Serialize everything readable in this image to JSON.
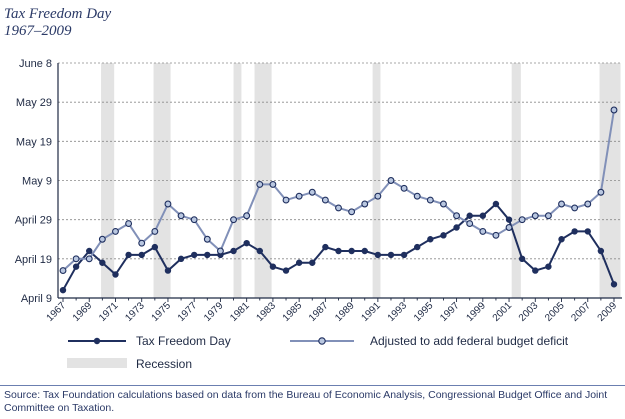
{
  "title": "Tax Freedom Day",
  "subtitle": "1967–2009",
  "source": "Source: Tax Foundation calculations based on data from the Bureau of Economic Analysis, Congressional Budget Office and Joint Committee on Taxation.",
  "colors": {
    "tfd": "#1f2f5e",
    "adjusted": "#8190b8",
    "adjusted_fill": "#b9c7e0",
    "recession": "#e3e3e3",
    "axis": "#1f2a44",
    "grid": "#8a8a8a"
  },
  "chart_data": {
    "type": "line",
    "title": "Tax Freedom Day",
    "subtitle": "1967–2009",
    "y_ticks": [
      {
        "label": "June 8",
        "value": 60
      },
      {
        "label": "May 29",
        "value": 50
      },
      {
        "label": "May 19",
        "value": 40
      },
      {
        "label": "May 9",
        "value": 30
      },
      {
        "label": "April 29",
        "value": 20
      },
      {
        "label": "April 19",
        "value": 10
      },
      {
        "label": "April 9",
        "value": 0
      }
    ],
    "y_unit": "days after April 9",
    "ylim": [
      0,
      60
    ],
    "xlim": [
      1967,
      2009
    ],
    "x_tick_labels": [
      "1967",
      "1969",
      "1971",
      "1973",
      "1975",
      "1977",
      "1979",
      "1981",
      "1983",
      "1985",
      "1987",
      "1989",
      "1991",
      "1993",
      "1995",
      "1997",
      "1999",
      "2001",
      "2003",
      "2005",
      "2007",
      "2009"
    ],
    "grid": "horizontal dashed",
    "recessions": [
      [
        1969.9,
        1970.9
      ],
      [
        1973.9,
        1975.2
      ],
      [
        1980.0,
        1980.6
      ],
      [
        1981.6,
        1982.9
      ],
      [
        1990.6,
        1991.2
      ],
      [
        2001.2,
        2001.9
      ],
      [
        2007.9,
        2009.5
      ]
    ],
    "legend": {
      "position": "bottom",
      "tfd_label": "Tax Freedom Day",
      "adjusted_label": "Adjusted to add federal budget deficit",
      "recession_label": "Recession"
    },
    "series": [
      {
        "name": "Tax Freedom Day",
        "x": [
          1967,
          1968,
          1969,
          1970,
          1971,
          1972,
          1973,
          1974,
          1975,
          1976,
          1977,
          1978,
          1979,
          1980,
          1981,
          1982,
          1983,
          1984,
          1985,
          1986,
          1987,
          1988,
          1989,
          1990,
          1991,
          1992,
          1993,
          1994,
          1995,
          1996,
          1997,
          1998,
          1999,
          2000,
          2001,
          2002,
          2003,
          2004,
          2005,
          2006,
          2007,
          2008,
          2009
        ],
        "values": [
          2,
          8,
          12,
          9,
          6,
          11,
          11,
          13,
          7,
          10,
          11,
          11,
          11,
          12,
          14,
          12,
          8,
          7,
          9,
          9,
          13,
          12,
          12,
          12,
          11,
          11,
          11,
          13,
          15,
          16,
          18,
          21,
          21,
          24,
          20,
          10,
          7,
          8,
          15,
          17,
          17,
          12,
          3.5
        ]
      },
      {
        "name": "Adjusted to add federal budget deficit",
        "x": [
          1967,
          1968,
          1969,
          1970,
          1971,
          1972,
          1973,
          1974,
          1975,
          1976,
          1977,
          1978,
          1979,
          1980,
          1981,
          1982,
          1983,
          1984,
          1985,
          1986,
          1987,
          1988,
          1989,
          1990,
          1991,
          1992,
          1993,
          1994,
          1995,
          1996,
          1997,
          1998,
          1999,
          2000,
          2001,
          2002,
          2003,
          2004,
          2005,
          2006,
          2007,
          2008,
          2009
        ],
        "values": [
          7,
          10,
          10,
          15,
          17,
          19,
          14,
          17,
          24,
          21,
          20,
          15,
          12,
          20,
          21,
          29,
          29,
          25,
          26,
          27,
          25,
          23,
          22,
          24,
          26,
          30,
          28,
          26,
          25,
          24,
          21,
          19,
          17,
          16,
          18,
          20,
          21,
          21,
          24,
          23,
          24,
          27,
          48
        ]
      }
    ]
  }
}
